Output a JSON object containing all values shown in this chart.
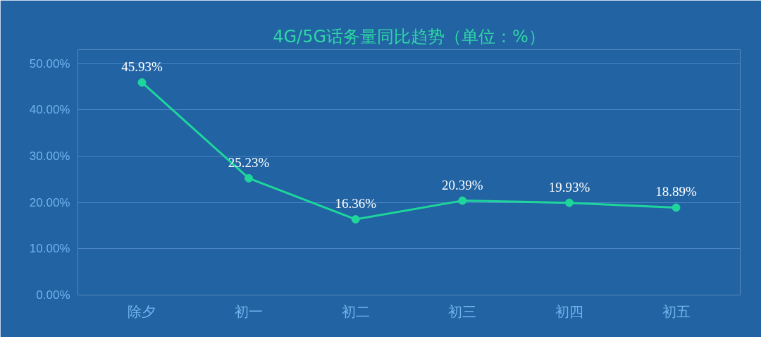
{
  "chart_data": {
    "type": "line",
    "title": "4G/5G话务量同比趋势（单位：%）",
    "categories": [
      "除夕",
      "初一",
      "初二",
      "初三",
      "初四",
      "初五"
    ],
    "series": [
      {
        "color": "#1ed69c",
        "values": [
          45.93,
          25.23,
          16.36,
          20.39,
          19.93,
          18.89
        ]
      }
    ],
    "value_labels": [
      "45.93%",
      "25.23%",
      "16.36%",
      "20.39%",
      "19.93%",
      "18.89%"
    ],
    "ylim": [
      0,
      50
    ],
    "yticks": [
      {
        "value": 0,
        "label": "0.00%"
      },
      {
        "value": 10,
        "label": "10.00%"
      },
      {
        "value": 20,
        "label": "20.00%"
      },
      {
        "value": 30,
        "label": "30.00%"
      },
      {
        "value": 40,
        "label": "40.00%"
      },
      {
        "value": 50,
        "label": "50.00%"
      }
    ],
    "grid": "y",
    "marker": "circle",
    "line_style": "solid"
  }
}
